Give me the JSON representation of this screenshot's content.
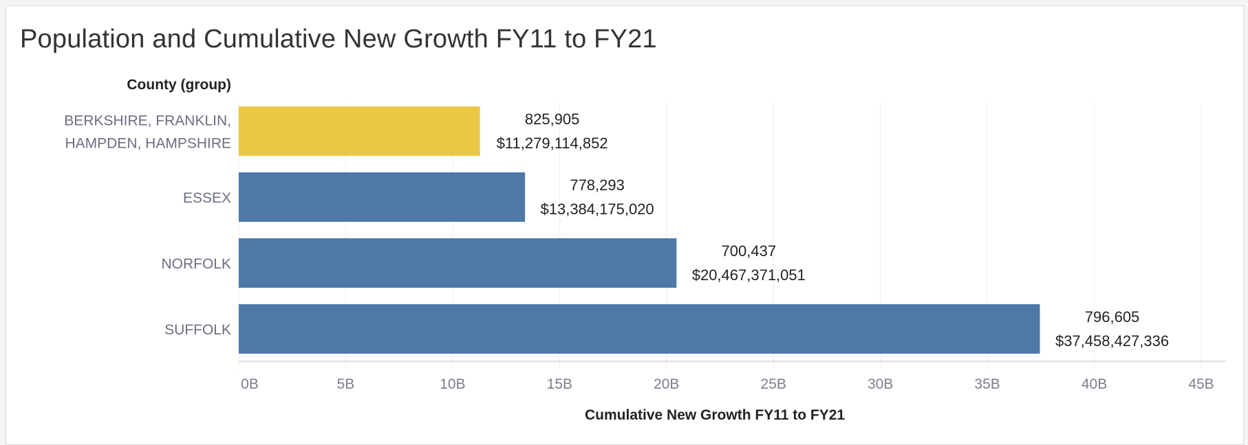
{
  "chart_data": {
    "type": "bar",
    "orientation": "horizontal",
    "title": "Population and Cumulative New Growth FY11 to FY21",
    "ylabel": "County (group)",
    "xlabel": "Cumulative New Growth FY11 to FY21",
    "xlim": [
      0,
      45
    ],
    "x_unit": "B",
    "grid": true,
    "categories": [
      [
        "BERKSHIRE, FRANKLIN,",
        "HAMPDEN, HAMPSHIRE"
      ],
      [
        "ESSEX"
      ],
      [
        "NORFOLK"
      ],
      [
        "SUFFOLK"
      ]
    ],
    "values": [
      11279114852,
      13384175020,
      20467371051,
      37458427336
    ],
    "population": [
      825905,
      778293,
      700437,
      796605
    ],
    "population_labels": [
      "825,905",
      "778,293",
      "700,437",
      "796,605"
    ],
    "value_labels": [
      "$11,279,114,852",
      "$13,384,175,020",
      "$20,467,371,051",
      "$37,458,427,336"
    ],
    "colors": [
      "#eac843",
      "#4e79a7",
      "#4e79a7",
      "#4e79a7"
    ],
    "ticks": [
      "0B",
      "5B",
      "10B",
      "15B",
      "20B",
      "25B",
      "30B",
      "35B",
      "40B",
      "45B"
    ]
  }
}
